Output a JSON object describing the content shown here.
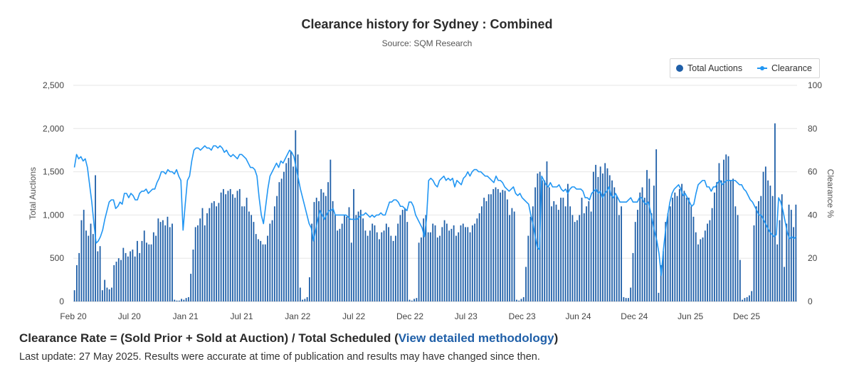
{
  "chart_data": {
    "type": "bar",
    "title": "Clearance history for Sydney : Combined",
    "subtitle": "Source: SQM Research",
    "xlabel": "",
    "ylabel_left": "Total Auctions",
    "ylabel_right": "Clearance %",
    "ylim_left": [
      0,
      2500
    ],
    "ylim_right": [
      0,
      100
    ],
    "yticks_left": [
      "0",
      "500",
      "1,000",
      "1,500",
      "2,000",
      "2,500"
    ],
    "yticks_right": [
      "0",
      "20",
      "40",
      "60",
      "80",
      "100"
    ],
    "xticks": [
      "Feb 20",
      "Jul 20",
      "Jan 21",
      "Jul 21",
      "Jan 22",
      "Jul 22",
      "Dec 22",
      "Jul 23",
      "Dec 23",
      "Jun 24",
      "Dec 24",
      "Jun 25",
      "Dec 25"
    ],
    "grid": true,
    "legend_placement": "top-right",
    "legend": [
      "Total Auctions",
      "Clearance"
    ],
    "colors": {
      "bars": "#1f5fa8",
      "line": "#2196f3",
      "grid": "#e6e6e6"
    },
    "series": [
      {
        "name": "Total Auctions",
        "type": "bar",
        "axis": "left",
        "values": [
          130,
          420,
          560,
          940,
          1060,
          820,
          760,
          900,
          780,
          1460,
          580,
          640,
          130,
          250,
          160,
          140,
          160,
          420,
          460,
          500,
          480,
          620,
          560,
          520,
          580,
          600,
          520,
          700,
          560,
          700,
          820,
          680,
          660,
          660,
          800,
          760,
          960,
          920,
          940,
          880,
          980,
          860,
          900,
          20,
          10,
          10,
          30,
          20,
          40,
          50,
          320,
          600,
          860,
          880,
          960,
          1080,
          880,
          1020,
          1080,
          1140,
          1160,
          1100,
          1140,
          1260,
          1300,
          1240,
          1280,
          1300,
          1240,
          1200,
          1280,
          1300,
          1100,
          1100,
          1200,
          1040,
          1000,
          920,
          780,
          720,
          700,
          660,
          660,
          760,
          900,
          940,
          1100,
          1220,
          1380,
          1420,
          1500,
          1600,
          1660,
          1740,
          1560,
          1980,
          1700,
          160,
          20,
          30,
          50,
          280,
          900,
          1150,
          1200,
          1160,
          1300,
          1260,
          1220,
          1380,
          1640,
          1160,
          1000,
          820,
          840,
          900,
          1000,
          980,
          1090,
          680,
          1300,
          1000,
          1040,
          1060,
          960,
          820,
          760,
          820,
          900,
          880,
          800,
          720,
          800,
          820,
          900,
          860,
          760,
          700,
          760,
          900,
          1000,
          1060,
          1080,
          920,
          20,
          10,
          30,
          40,
          680,
          740,
          960,
          1000,
          800,
          800,
          900,
          880,
          740,
          760,
          860,
          940,
          900,
          820,
          840,
          880,
          760,
          800,
          880,
          900,
          860,
          860,
          800,
          880,
          900,
          960,
          1020,
          1100,
          1200,
          1160,
          1240,
          1240,
          1300,
          1320,
          1300,
          1260,
          1290,
          1280,
          1180,
          1000,
          1080,
          1040,
          20,
          10,
          30,
          50,
          400,
          760,
          980,
          1100,
          1320,
          1480,
          1500,
          1400,
          1400,
          1620,
          1320,
          1100,
          1160,
          1120,
          1060,
          1200,
          1200,
          1100,
          1360,
          1100,
          1000,
          920,
          940,
          1000,
          1200,
          1020,
          1100,
          1160,
          1040,
          1500,
          1580,
          1440,
          1560,
          1480,
          1600,
          1540,
          1460,
          1400,
          1320,
          1220,
          1000,
          1100,
          50,
          40,
          40,
          160,
          560,
          920,
          1060,
          1260,
          1320,
          1200,
          1520,
          1420,
          1020,
          1340,
          1760,
          100,
          420,
          580,
          920,
          1020,
          1100,
          1200,
          1260,
          1220,
          1300,
          1360,
          1280,
          1200,
          1200,
          1100,
          980,
          800,
          660,
          720,
          740,
          820,
          900,
          940,
          1080,
          1260,
          1380,
          1600,
          1400,
          1640,
          1700,
          1680,
          1400,
          1420,
          1100,
          1000,
          480,
          20,
          40,
          50,
          70,
          120,
          880,
          1100,
          1160,
          1220,
          1500,
          1560,
          1400,
          1340,
          1220,
          2060,
          660,
          940,
          1240,
          400,
          900,
          1120,
          1060,
          860,
          1120
        ]
      },
      {
        "name": "Clearance",
        "type": "line",
        "axis": "right",
        "values": [
          62,
          68,
          66,
          67,
          65,
          66,
          62,
          54,
          46,
          36,
          27,
          28,
          30,
          33,
          38,
          42,
          46,
          47,
          47,
          43,
          44,
          46,
          45,
          50,
          50,
          48,
          50,
          49,
          47,
          47,
          50,
          51,
          51,
          52,
          50,
          51,
          52,
          52,
          55,
          57,
          60,
          60,
          59,
          61,
          60,
          60,
          59,
          61,
          58,
          56,
          33,
          45,
          56,
          58,
          65,
          70,
          71,
          71,
          70,
          71,
          72,
          71,
          71,
          70,
          72,
          72,
          71,
          72,
          71,
          69,
          70,
          68,
          67,
          68,
          67,
          66,
          68,
          68,
          67,
          66,
          64,
          62,
          62,
          61,
          58,
          48,
          40,
          36,
          44,
          52,
          58,
          60,
          62,
          64,
          62,
          65,
          64,
          66,
          68,
          70,
          69,
          67,
          62,
          57,
          52,
          48,
          44,
          40,
          36,
          34,
          28,
          33,
          38,
          42,
          40,
          38,
          40,
          42,
          42,
          43,
          40,
          40,
          40,
          40,
          40,
          40,
          39,
          38,
          38,
          38,
          38,
          39,
          40,
          40,
          41,
          40,
          39,
          40,
          39,
          40,
          40,
          41,
          40,
          40,
          43,
          46,
          46,
          47,
          47,
          46,
          44,
          44,
          43,
          42,
          46,
          46,
          44,
          40,
          38,
          36,
          34,
          30,
          38,
          56,
          57,
          56,
          54,
          53,
          56,
          57,
          58,
          56,
          57,
          56,
          57,
          53,
          56,
          55,
          54,
          57,
          58,
          60,
          58,
          60,
          61,
          61,
          60,
          60,
          59,
          58,
          58,
          57,
          56,
          55,
          58,
          56,
          56,
          55,
          53,
          52,
          51,
          52,
          53,
          50,
          49,
          50,
          48,
          47,
          46,
          45,
          40,
          36,
          30,
          25,
          24,
          58,
          56,
          54,
          53,
          55,
          53,
          53,
          53,
          54,
          52,
          51,
          52,
          50,
          52,
          53,
          53,
          52,
          52,
          52,
          51,
          48,
          48,
          47,
          50,
          51,
          52,
          50,
          51,
          48,
          50,
          51,
          53,
          49,
          48,
          50,
          48,
          46,
          46,
          46,
          46,
          47,
          48,
          46,
          46,
          46,
          48,
          48,
          46,
          45,
          46,
          42,
          37,
          32,
          28,
          22,
          12,
          24,
          33,
          40,
          46,
          50,
          52,
          53,
          54,
          52,
          49,
          50,
          48,
          46,
          44,
          45,
          50,
          54,
          55,
          56,
          56,
          53,
          53,
          51,
          53,
          53,
          55,
          56,
          54,
          55,
          56,
          56,
          56,
          56,
          56,
          55,
          54,
          54,
          52,
          51,
          49,
          47,
          46,
          44,
          42,
          40,
          40,
          38,
          36,
          34,
          32,
          31,
          30,
          31,
          48,
          46,
          42,
          37,
          32,
          29,
          30,
          29,
          30
        ]
      }
    ]
  },
  "footer": {
    "formula_text": "Clearance Rate = (Sold Prior + Sold at Auction) / Total Scheduled (",
    "methodology_link": "View detailed methodology",
    "formula_close": ")",
    "last_update": "Last update: 27 May 2025. Results were accurate at time of publication and results may have changed since then."
  }
}
